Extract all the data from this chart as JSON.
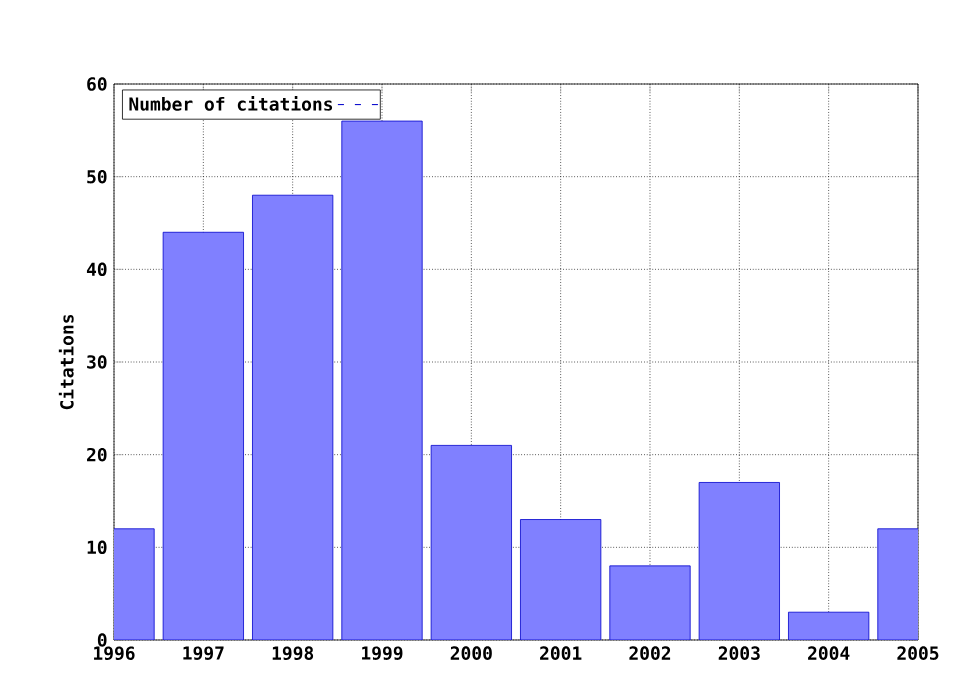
{
  "chart_data": {
    "type": "bar",
    "ylabel": "Citations",
    "x": [
      1996,
      1997,
      1998,
      1999,
      2000,
      2001,
      2002,
      2003,
      2004,
      2005
    ],
    "series": [
      {
        "name": "Number of citations",
        "color": "#8080ff",
        "values": [
          12,
          44,
          48,
          56,
          21,
          13,
          8,
          17,
          3,
          12
        ]
      }
    ],
    "xlim": [
      1996,
      2005
    ],
    "xticks": [
      1996,
      1997,
      1998,
      1999,
      2000,
      2001,
      2002,
      2003,
      2004,
      2005
    ],
    "ylim": [
      0,
      60
    ],
    "yticks": [
      0,
      10,
      20,
      30,
      40,
      50,
      60
    ],
    "grid": true,
    "legend": "top left"
  }
}
